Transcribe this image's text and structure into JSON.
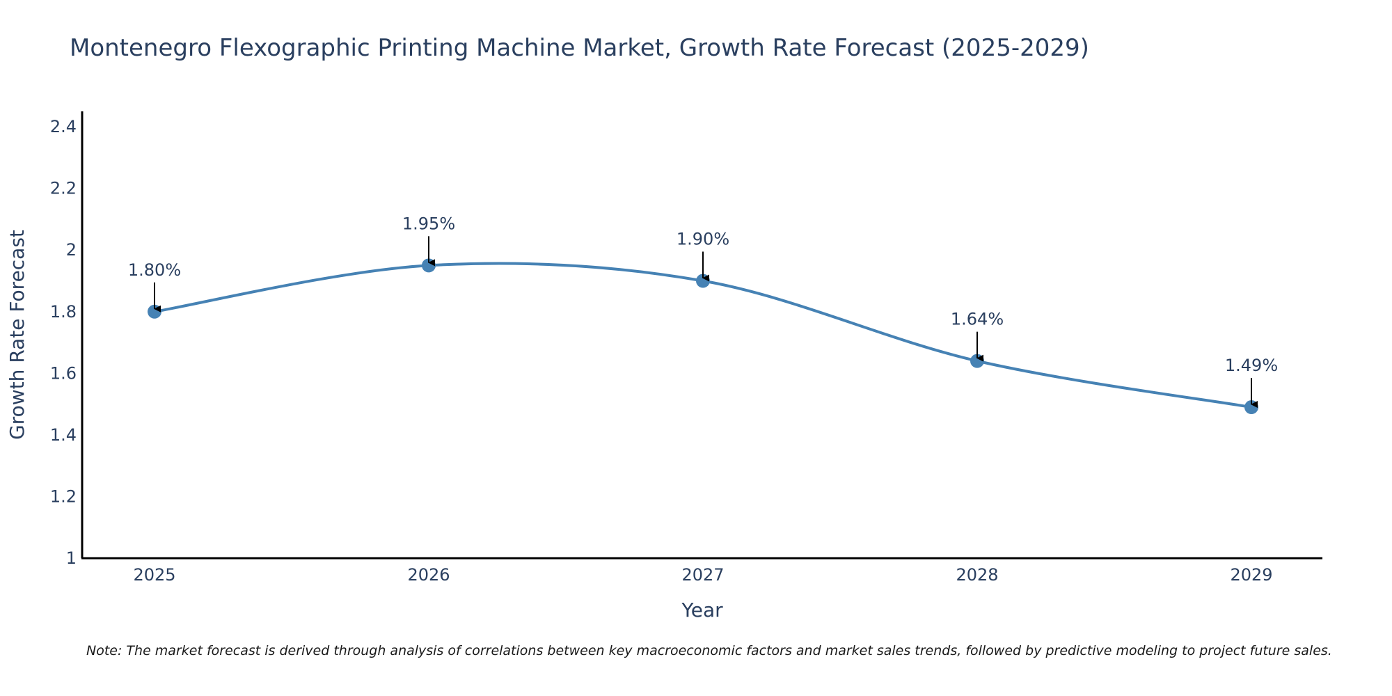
{
  "chart_data": {
    "type": "line",
    "title": "Montenegro Flexographic Printing Machine Market, Growth Rate Forecast (2025-2029)",
    "xlabel": "Year",
    "ylabel": "Growth Rate Forecast",
    "categories": [
      "2025",
      "2026",
      "2027",
      "2028",
      "2029"
    ],
    "values": [
      1.8,
      1.95,
      1.9,
      1.64,
      1.49
    ],
    "data_labels": [
      "1.80%",
      "1.95%",
      "1.90%",
      "1.64%",
      "1.49%"
    ],
    "ylim": [
      1,
      2.45
    ],
    "yticks": [
      1,
      1.2,
      1.4,
      1.6,
      1.8,
      2,
      2.2,
      2.4
    ],
    "ytick_labels": [
      "1",
      "1.2",
      "1.4",
      "1.6",
      "1.8",
      "2",
      "2.2",
      "2.4"
    ],
    "line_color": "#4682b4",
    "grid": false,
    "note": "Note: The market forecast is derived through analysis of correlations between key macroeconomic factors and market sales trends, followed by predictive modeling to project future sales."
  }
}
